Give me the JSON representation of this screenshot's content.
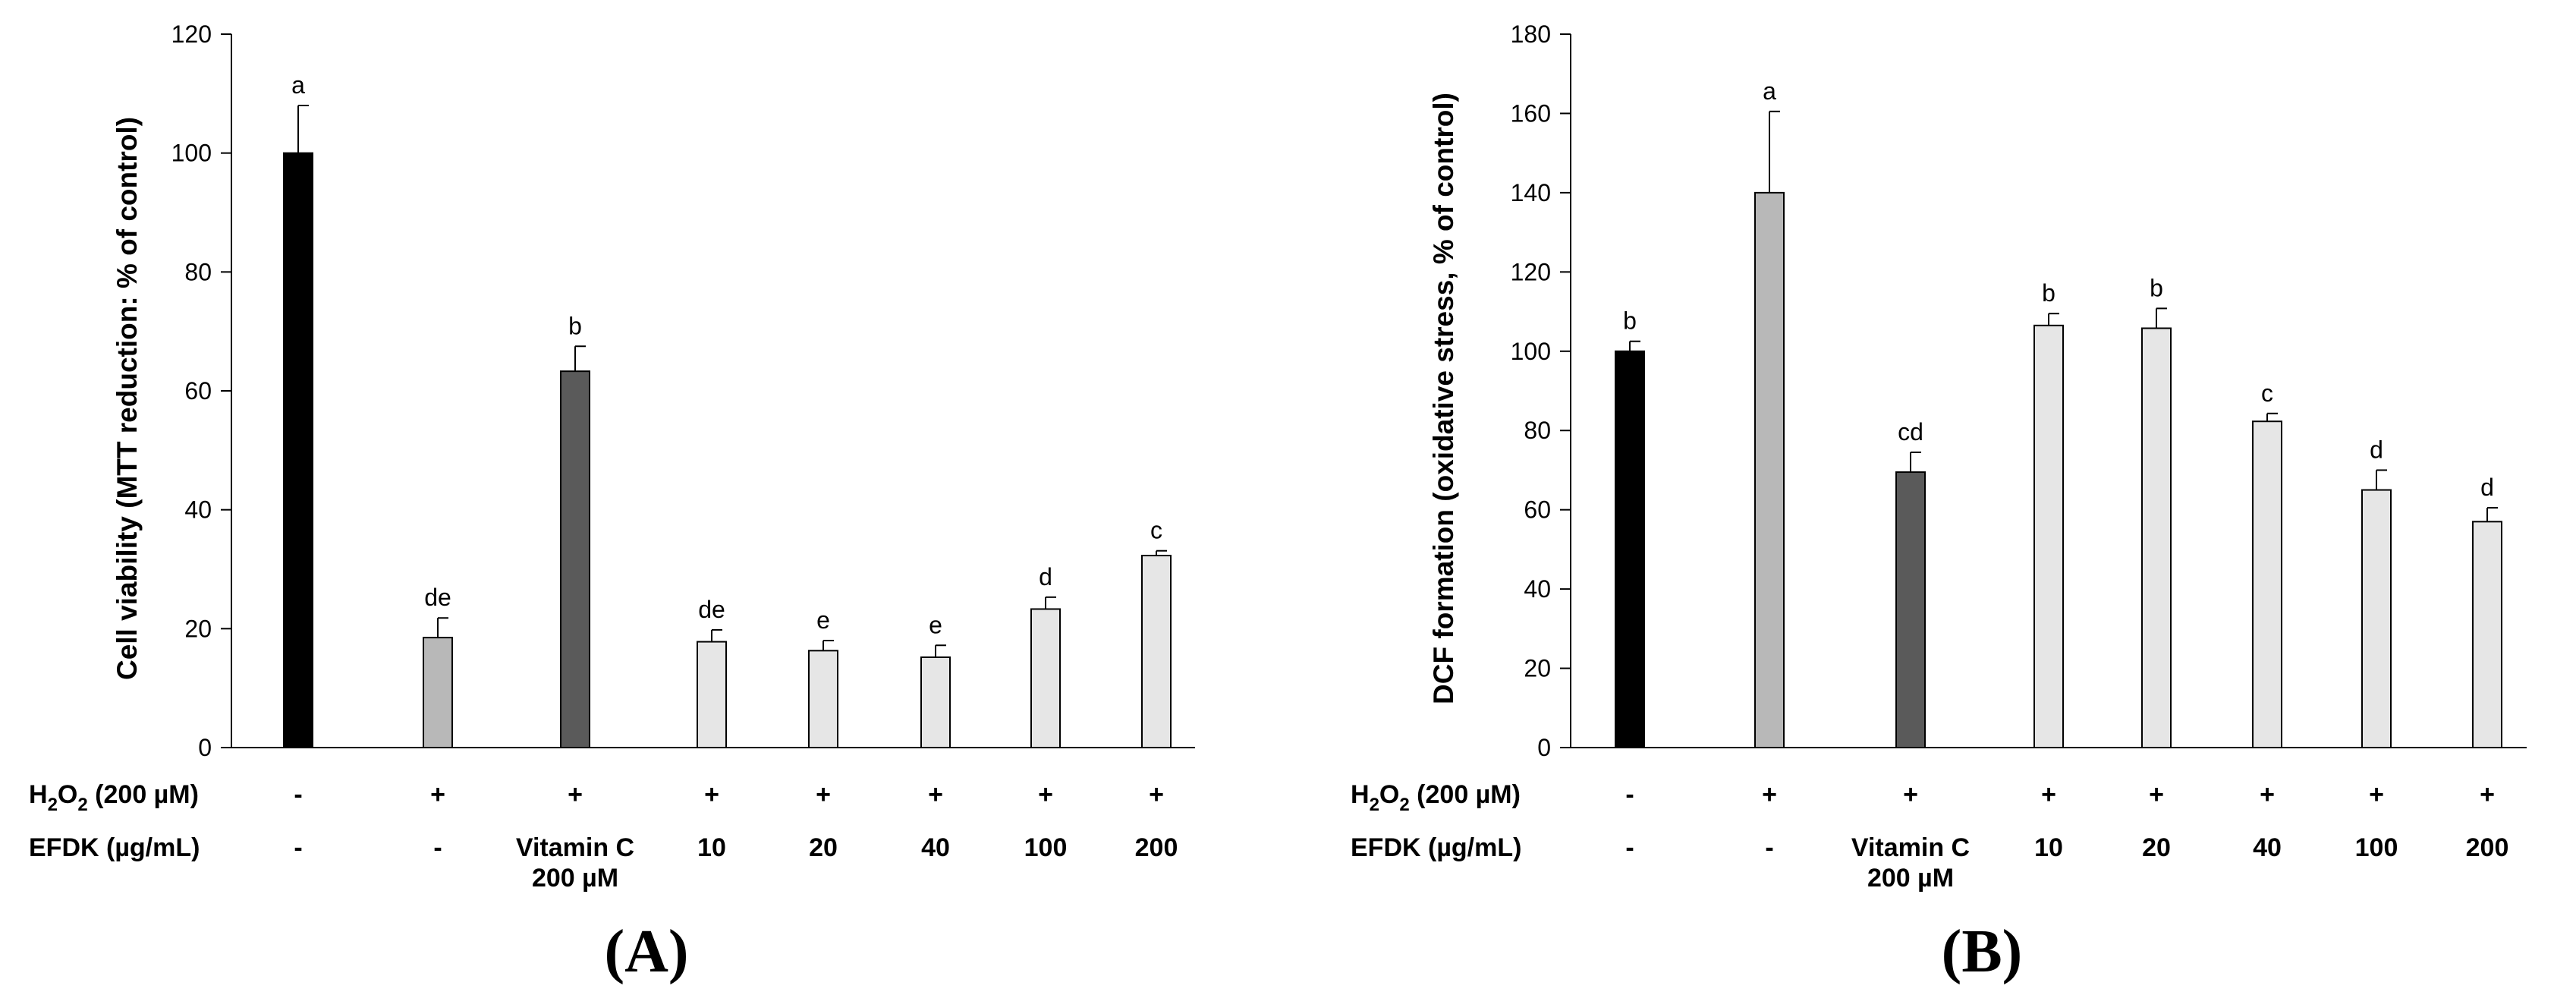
{
  "colors": {
    "black": "#000000",
    "light_gray": "#b8b8b8",
    "dark_gray": "#5a5a5a",
    "pale_gray": "#e6e6e6"
  },
  "conditions": {
    "h2o2_label": "H2O2 (200 µM)",
    "efdk_label": "EFDK (µg/mL)",
    "h2o2": [
      "-",
      "+",
      "+",
      "+",
      "+",
      "+",
      "+",
      "+"
    ],
    "efdk": [
      "-",
      "-",
      "Vitamin C",
      "10",
      "20",
      "40",
      "100",
      "200"
    ],
    "efdk_line2": [
      "",
      "",
      "200 µM",
      "",
      "",
      "",
      "",
      ""
    ]
  },
  "chart_data": [
    {
      "type": "bar",
      "panel_label": "(A)",
      "ylabel": "Cell viability (MTT reduction: % of control)",
      "ylim": [
        0,
        120
      ],
      "yticks": [
        0,
        20,
        40,
        60,
        80,
        100,
        120
      ],
      "values": [
        100,
        18.5,
        63.3,
        17.8,
        16.3,
        15.2,
        23.3,
        32.3
      ],
      "errors": [
        8,
        3.3,
        4.2,
        2,
        1.7,
        2,
        2,
        0.8
      ],
      "letters": [
        "a",
        "de",
        "b",
        "de",
        "e",
        "e",
        "d",
        "c"
      ],
      "bar_colors": [
        "black",
        "light_gray",
        "dark_gray",
        "pale_gray",
        "pale_gray",
        "pale_gray",
        "pale_gray",
        "pale_gray"
      ]
    },
    {
      "type": "bar",
      "panel_label": "(B)",
      "ylabel": "DCF formation (oxidative stress, % of control)",
      "ylim": [
        0,
        180
      ],
      "yticks": [
        0,
        20,
        40,
        60,
        80,
        100,
        120,
        140,
        160,
        180
      ],
      "values": [
        100,
        140,
        69.5,
        106.5,
        105.8,
        82.3,
        65,
        57
      ],
      "errors": [
        2.5,
        20.5,
        5,
        3,
        5,
        2,
        5,
        3.5
      ],
      "letters": [
        "b",
        "a",
        "cd",
        "b",
        "b",
        "c",
        "d",
        "d"
      ],
      "bar_colors": [
        "black",
        "light_gray",
        "dark_gray",
        "pale_gray",
        "pale_gray",
        "pale_gray",
        "pale_gray",
        "pale_gray"
      ]
    }
  ]
}
